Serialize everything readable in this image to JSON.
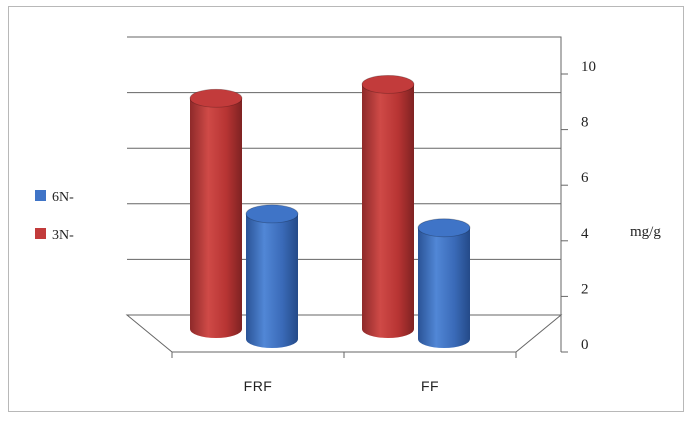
{
  "chart_data": {
    "type": "bar",
    "title": "",
    "xlabel": "",
    "ylabel": "mg/g",
    "ylim": [
      0,
      10
    ],
    "yticks": [
      0,
      2,
      4,
      6,
      8,
      10
    ],
    "grid": true,
    "legend_position": "left",
    "categories": [
      "FRF",
      "FF"
    ],
    "series": [
      {
        "name": "6N-",
        "color": "#3f74c7",
        "values": [
          4.5,
          4.0
        ]
      },
      {
        "name": "3N-",
        "color": "#c23b3b",
        "values": [
          8.3,
          8.8
        ]
      }
    ]
  }
}
